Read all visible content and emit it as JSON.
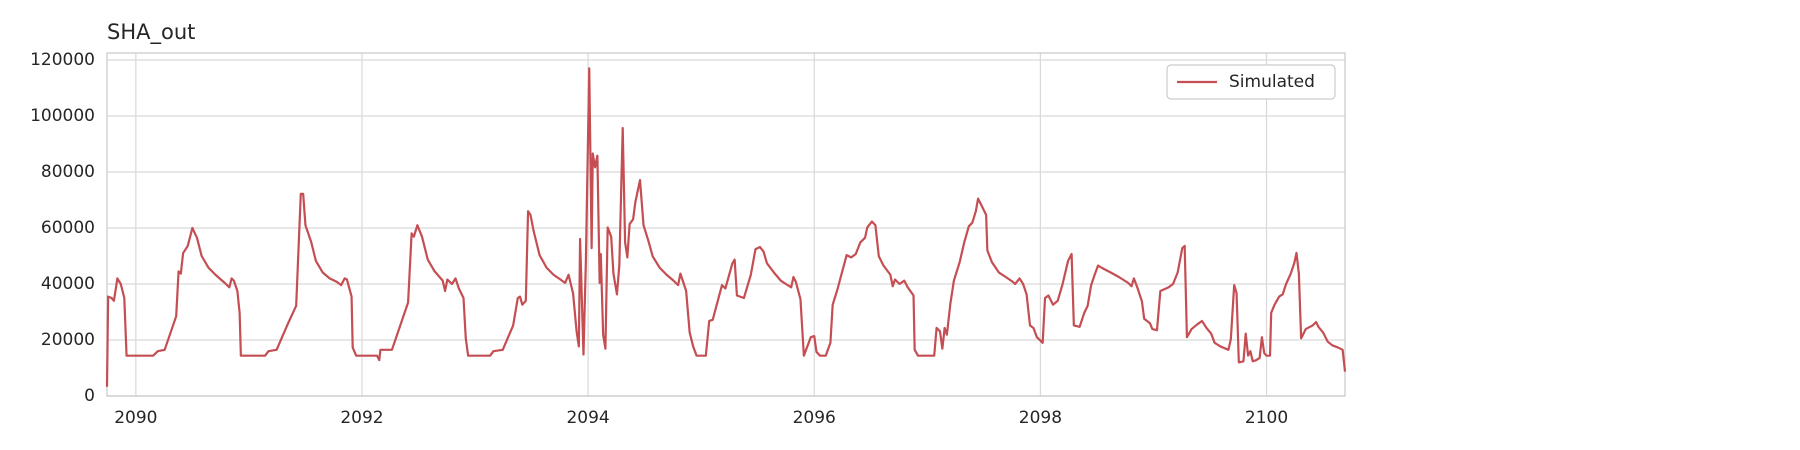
{
  "chart_data": {
    "type": "line",
    "title": "SHA_out",
    "x": [
      2089.745,
      2089.755,
      2089.786,
      2089.806,
      2089.837,
      2089.867,
      2089.898,
      2089.918,
      2090.153,
      2090.194,
      2090.255,
      2090.357,
      2090.378,
      2090.398,
      2090.418,
      2090.459,
      2090.5,
      2090.541,
      2090.582,
      2090.643,
      2090.704,
      2090.786,
      2090.827,
      2090.847,
      2090.867,
      2090.898,
      2090.918,
      2090.929,
      2091.143,
      2091.173,
      2091.245,
      2091.347,
      2091.418,
      2091.459,
      2091.48,
      2091.5,
      2091.551,
      2091.592,
      2091.653,
      2091.714,
      2091.776,
      2091.816,
      2091.847,
      2091.867,
      2091.908,
      2091.918,
      2091.949,
      2092.133,
      2092.153,
      2092.163,
      2092.265,
      2092.408,
      2092.439,
      2092.459,
      2092.49,
      2092.531,
      2092.582,
      2092.643,
      2092.714,
      2092.735,
      2092.755,
      2092.796,
      2092.827,
      2092.857,
      2092.898,
      2092.918,
      2092.939,
      2093.133,
      2093.163,
      2093.245,
      2093.337,
      2093.378,
      2093.398,
      2093.418,
      2093.449,
      2093.469,
      2093.49,
      2093.52,
      2093.571,
      2093.633,
      2093.694,
      2093.755,
      2093.796,
      2093.827,
      2093.867,
      2093.898,
      2093.918,
      2093.929,
      2093.959,
      2093.98,
      2094.01,
      2094.031,
      2094.041,
      2094.061,
      2094.082,
      2094.102,
      2094.112,
      2094.133,
      2094.153,
      2094.173,
      2094.204,
      2094.224,
      2094.255,
      2094.276,
      2094.306,
      2094.327,
      2094.347,
      2094.367,
      2094.398,
      2094.418,
      2094.459,
      2094.49,
      2094.531,
      2094.571,
      2094.633,
      2094.694,
      2094.755,
      2094.796,
      2094.816,
      2094.837,
      2094.867,
      2094.898,
      2094.929,
      2094.959,
      2095.041,
      2095.071,
      2095.102,
      2095.184,
      2095.214,
      2095.276,
      2095.296,
      2095.316,
      2095.378,
      2095.439,
      2095.48,
      2095.52,
      2095.551,
      2095.582,
      2095.643,
      2095.704,
      2095.765,
      2095.796,
      2095.816,
      2095.837,
      2095.878,
      2095.908,
      2095.939,
      2095.969,
      2096,
      2096.02,
      2096.051,
      2096.102,
      2096.143,
      2096.163,
      2096.204,
      2096.286,
      2096.327,
      2096.367,
      2096.408,
      2096.449,
      2096.469,
      2096.51,
      2096.541,
      2096.571,
      2096.612,
      2096.673,
      2096.694,
      2096.714,
      2096.755,
      2096.796,
      2096.827,
      2096.878,
      2096.888,
      2096.918,
      2097.061,
      2097.082,
      2097.112,
      2097.133,
      2097.153,
      2097.173,
      2097.204,
      2097.235,
      2097.286,
      2097.327,
      2097.367,
      2097.398,
      2097.429,
      2097.449,
      2097.48,
      2097.52,
      2097.531,
      2097.571,
      2097.633,
      2097.694,
      2097.755,
      2097.776,
      2097.816,
      2097.847,
      2097.878,
      2097.908,
      2097.939,
      2097.969,
      2098.02,
      2098.041,
      2098.071,
      2098.112,
      2098.153,
      2098.194,
      2098.245,
      2098.276,
      2098.296,
      2098.347,
      2098.388,
      2098.418,
      2098.449,
      2098.48,
      2098.51,
      2098.541,
      2098.622,
      2098.694,
      2098.776,
      2098.806,
      2098.827,
      2098.857,
      2098.898,
      2098.918,
      2098.969,
      2098.99,
      2099.031,
      2099.061,
      2099.133,
      2099.173,
      2099.214,
      2099.255,
      2099.276,
      2099.296,
      2099.337,
      2099.388,
      2099.429,
      2099.469,
      2099.51,
      2099.541,
      2099.592,
      2099.663,
      2099.684,
      2099.714,
      2099.735,
      2099.755,
      2099.796,
      2099.816,
      2099.837,
      2099.857,
      2099.878,
      2099.908,
      2099.939,
      2099.959,
      2099.98,
      2100,
      2100.031,
      2100.041,
      2100.071,
      2100.112,
      2100.143,
      2100.173,
      2100.214,
      2100.245,
      2100.265,
      2100.286,
      2100.306,
      2100.347,
      2100.408,
      2100.439,
      2100.459,
      2100.5,
      2100.541,
      2100.582,
      2100.633,
      2100.673,
      2100.694
    ],
    "series": [
      {
        "name": "Simulated",
        "color": "#c44e52",
        "values": [
          3300,
          35500,
          35000,
          34000,
          42000,
          40000,
          35000,
          14400,
          14400,
          16000,
          16500,
          28500,
          44500,
          43700,
          51000,
          53600,
          60000,
          56500,
          50000,
          45800,
          43300,
          40400,
          38800,
          42000,
          41200,
          37500,
          29700,
          14400,
          14400,
          16000,
          16500,
          26000,
          32200,
          72200,
          72200,
          61000,
          55000,
          48300,
          44100,
          42000,
          40800,
          39600,
          42000,
          41600,
          35500,
          17300,
          14400,
          14400,
          12800,
          16500,
          16500,
          33400,
          58100,
          56900,
          61000,
          56900,
          48700,
          44500,
          41200,
          37500,
          41600,
          40000,
          42000,
          38400,
          35000,
          20600,
          14400,
          14400,
          16000,
          16500,
          25200,
          35000,
          35500,
          32600,
          34000,
          66000,
          64700,
          58600,
          50300,
          45800,
          43300,
          41600,
          40400,
          43300,
          36700,
          23100,
          17700,
          56100,
          14800,
          47800,
          117000,
          52800,
          86600,
          81700,
          85800,
          40400,
          50700,
          21900,
          16900,
          60200,
          56900,
          43700,
          36300,
          46600,
          95700,
          54900,
          49500,
          61400,
          63100,
          69300,
          77100,
          61000,
          55700,
          49900,
          45800,
          43300,
          41200,
          39600,
          43700,
          41200,
          37500,
          22700,
          17700,
          14400,
          14400,
          26800,
          27200,
          39600,
          38400,
          47400,
          48700,
          35900,
          35000,
          43300,
          52400,
          53200,
          51600,
          47400,
          44100,
          41200,
          39600,
          38800,
          42500,
          40800,
          34600,
          14400,
          17700,
          21000,
          21400,
          15700,
          14400,
          14400,
          19000,
          32600,
          37900,
          50300,
          49500,
          50700,
          54900,
          56500,
          60200,
          62300,
          61000,
          49900,
          46600,
          43300,
          39200,
          41600,
          40000,
          41200,
          38800,
          35900,
          16500,
          14400,
          14400,
          24300,
          23100,
          16900,
          24300,
          21900,
          33000,
          41200,
          47800,
          54900,
          60600,
          61900,
          66000,
          70500,
          68000,
          64700,
          52000,
          47800,
          44100,
          42500,
          40800,
          40000,
          42000,
          40000,
          36300,
          25200,
          24300,
          21000,
          19000,
          35000,
          35900,
          32600,
          34000,
          39600,
          48300,
          50700,
          25200,
          24700,
          29700,
          32200,
          39600,
          43300,
          46600,
          45800,
          44100,
          42500,
          40400,
          39200,
          42000,
          38800,
          33800,
          27600,
          26000,
          23900,
          23500,
          37500,
          38800,
          40000,
          44100,
          52800,
          53600,
          21000,
          23900,
          25600,
          26800,
          24300,
          22300,
          19000,
          17700,
          16500,
          20200,
          39600,
          36700,
          12000,
          12400,
          22300,
          14400,
          16000,
          12400,
          12800,
          13600,
          21000,
          15300,
          14400,
          14400,
          29700,
          32600,
          35500,
          36300,
          40000,
          43700,
          47400,
          51100,
          43700,
          20600,
          23900,
          25200,
          26400,
          24700,
          22700,
          19400,
          18100,
          17300,
          16500,
          8700
        ]
      }
    ],
    "xlim": [
      2089.745,
      2100.694
    ],
    "xticks": [
      2090,
      2092,
      2094,
      2096,
      2098,
      2100
    ],
    "ylim": [
      0,
      122500
    ],
    "yticks": [
      0,
      20000,
      40000,
      60000,
      80000,
      100000,
      120000
    ],
    "grid": true,
    "legend": "upper right"
  }
}
